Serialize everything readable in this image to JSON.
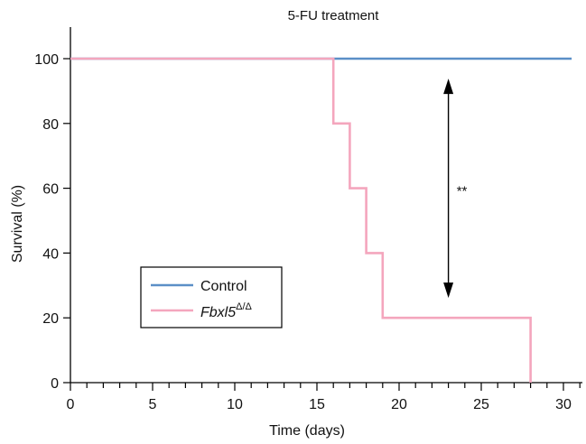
{
  "chart_data": {
    "type": "line",
    "title": "5-FU treatment",
    "xlabel": "Time (days)",
    "ylabel": "Survival (%)",
    "xlim": [
      0,
      31
    ],
    "ylim": [
      0,
      105
    ],
    "x_ticks_major": [
      0,
      5,
      10,
      15,
      20,
      25,
      30
    ],
    "x_tick_labels": [
      "0",
      "5",
      "10",
      "15",
      "20",
      "25",
      "30"
    ],
    "x_ticks_minor_step": 1,
    "y_ticks": [
      0,
      20,
      40,
      60,
      80,
      100
    ],
    "y_tick_labels": [
      "0",
      "20",
      "40",
      "60",
      "80",
      "100"
    ],
    "grid": false,
    "series": [
      {
        "name": "Control",
        "color": "#5b8fc7",
        "step": true,
        "x": [
          0,
          30.5
        ],
        "y": [
          100,
          100
        ]
      },
      {
        "name": "Fbxl5",
        "name_superscript": "Δ/Δ",
        "color": "#f4a6bd",
        "step": true,
        "x": [
          0,
          16,
          17,
          18,
          19,
          28
        ],
        "y": [
          100,
          80,
          60,
          40,
          20,
          0
        ]
      }
    ],
    "annotations": [
      {
        "type": "double-arrow",
        "x": 23,
        "y_from": 27,
        "y_to": 93
      },
      {
        "type": "significance",
        "text": "**",
        "x": 23.5,
        "y": 60
      }
    ],
    "legend": {
      "position": "lower-left",
      "entries": [
        "Control",
        "Fbxl5"
      ]
    }
  }
}
